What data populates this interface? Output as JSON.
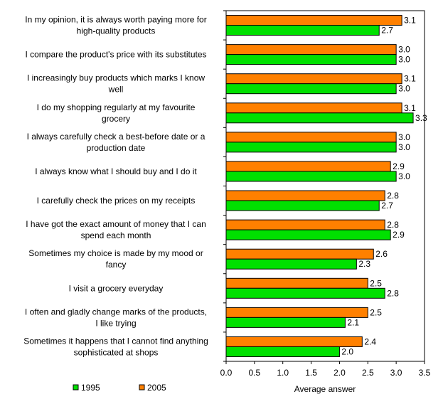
{
  "chart_data": {
    "type": "bar",
    "orientation": "horizontal",
    "categories": [
      [
        "In my opinion, it is always worth paying more for",
        "high-quality products"
      ],
      [
        "I compare the product's price with its substitutes"
      ],
      [
        "I increasingly buy products which marks I know",
        "well"
      ],
      [
        "I do my shopping regularly at my favourite",
        "grocery"
      ],
      [
        "I always carefully check a best-before date or a",
        "production date"
      ],
      [
        "I always know what I should buy and I do it"
      ],
      [
        "I carefully check the prices on my receipts"
      ],
      [
        "I have got the exact amount of money that I can",
        "spend each month"
      ],
      [
        "Sometimes my choice is made by my mood or",
        "fancy"
      ],
      [
        "I visit a grocery everyday"
      ],
      [
        "I often and gladly change marks of the products,",
        "I like trying"
      ],
      [
        "Sometimes it happens that I cannot find anything",
        "sophisticated at shops"
      ]
    ],
    "series": [
      {
        "name": "2005",
        "color": "#ff8000",
        "values": [
          3.1,
          3.0,
          3.1,
          3.1,
          3.0,
          2.9,
          2.8,
          2.8,
          2.6,
          2.5,
          2.5,
          2.4
        ]
      },
      {
        "name": "1995",
        "color": "#00e000",
        "values": [
          2.7,
          3.0,
          3.0,
          3.3,
          3.0,
          3.0,
          2.7,
          2.9,
          2.3,
          2.8,
          2.1,
          2.0
        ]
      }
    ],
    "value_labels": {
      "2005": [
        "3.1",
        "3.0",
        "3.1",
        "3.1",
        "3.0",
        "2.9",
        "2.8",
        "2.8",
        "2.6",
        "2.5",
        "2.5",
        "2.4"
      ],
      "1995": [
        "2.7",
        "3.0",
        "3.0",
        "3.3",
        "3.0",
        "3.0",
        "2.7",
        "2.9",
        "2.3",
        "2.8",
        "2.1",
        "2.0"
      ]
    },
    "xlim": [
      0,
      3.5
    ],
    "xticks": [
      "0.0",
      "0.5",
      "1.0",
      "1.5",
      "2.0",
      "2.5",
      "3.0",
      "3.5"
    ],
    "xlabel": "Average answer",
    "legend": {
      "position": "bottom-left",
      "items": [
        "1995",
        "2005"
      ]
    },
    "grid": false
  }
}
